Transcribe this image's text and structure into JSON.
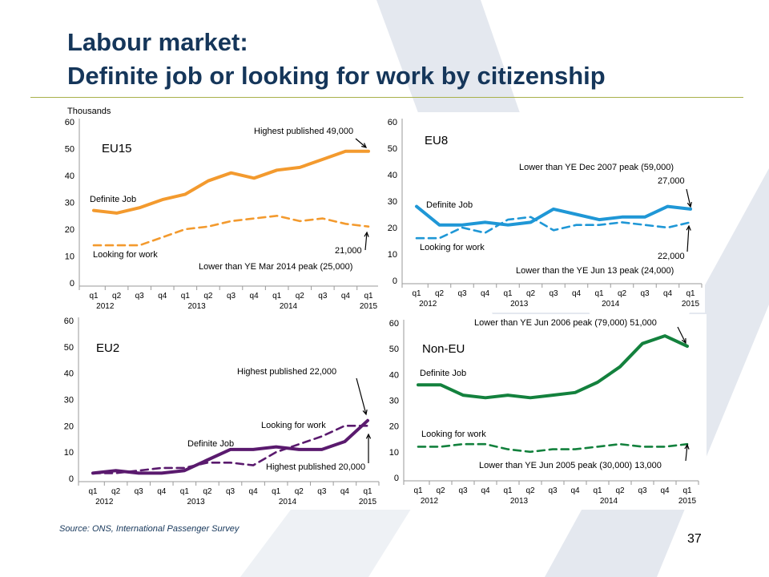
{
  "slide": {
    "title_line1": "Labour market:",
    "title_line2": "Definite job or looking for work by citizenship",
    "source": "Source: ONS, International Passenger Survey",
    "page_number": "37"
  },
  "colors": {
    "title": "#15365a",
    "rule": "#a9b04a",
    "eu15": "#f39a2e",
    "eu8": "#1f97d6",
    "eu2": "#5a1a6e",
    "noneu": "#13813d",
    "background_chevron": "#e4e8ef"
  },
  "chart_data": [
    {
      "name": "eu15",
      "type": "line",
      "title": "EU15",
      "ylabel": "Thousands",
      "ylim": [
        0,
        60
      ],
      "yticks": [
        "0",
        "10",
        "20",
        "30",
        "40",
        "50",
        "60"
      ],
      "categories": [
        "q1",
        "q2",
        "q3",
        "q4",
        "q1",
        "q2",
        "q3",
        "q4",
        "q1",
        "q2",
        "q3",
        "q4",
        "q1"
      ],
      "year_labels": [
        {
          "text": "2012",
          "index": 0.5
        },
        {
          "text": "2013",
          "index": 4.5
        },
        {
          "text": "2014",
          "index": 8.5
        },
        {
          "text": "2015",
          "index": 12
        }
      ],
      "grid": false,
      "series": [
        {
          "name": "Definite Job",
          "style": "solid",
          "values": [
            27,
            26,
            28,
            31,
            33,
            38,
            41,
            39,
            42,
            43,
            46,
            49,
            49
          ]
        },
        {
          "name": "Looking for work",
          "style": "dashed",
          "values": [
            14,
            14,
            14,
            17,
            20,
            21,
            23,
            24,
            25,
            23,
            24,
            22,
            21
          ]
        }
      ],
      "annotations": [
        {
          "text": "Highest published  49,000",
          "x": 12,
          "y": 49,
          "side": "above"
        },
        {
          "text": "21,000",
          "x": 12,
          "y": 21,
          "side": "below"
        },
        {
          "text": "Lower than YE Mar 2014 peak (25,000)",
          "x": 12,
          "y": 21,
          "side": "below"
        }
      ]
    },
    {
      "name": "eu8",
      "type": "line",
      "title": "EU8",
      "ylim": [
        0,
        60
      ],
      "yticks": [
        "0",
        "10",
        "20",
        "30",
        "40",
        "50",
        "60"
      ],
      "categories": [
        "q1",
        "q2",
        "q3",
        "q4",
        "q1",
        "q2",
        "q3",
        "q4",
        "q1",
        "q2",
        "q3",
        "q4",
        "q1"
      ],
      "year_labels": [
        {
          "text": "2012",
          "index": 0.5
        },
        {
          "text": "2013",
          "index": 4.5
        },
        {
          "text": "2014",
          "index": 8.5
        },
        {
          "text": "2015",
          "index": 12
        }
      ],
      "grid": false,
      "series": [
        {
          "name": "Definite Job",
          "style": "solid",
          "values": [
            28,
            21,
            21,
            22,
            21,
            22,
            27,
            25,
            23,
            24,
            24,
            28,
            27
          ]
        },
        {
          "name": "Looking for work",
          "style": "dashed",
          "values": [
            16,
            16,
            20,
            18,
            23,
            24,
            19,
            21,
            21,
            22,
            21,
            20,
            22
          ]
        }
      ],
      "annotations": [
        {
          "text": "Lower than YE Dec 2007 peak (59,000)",
          "x": 12,
          "y": 27,
          "side": "above"
        },
        {
          "text": "27,000",
          "x": 12,
          "y": 27,
          "side": "above"
        },
        {
          "text": "22,000",
          "x": 12,
          "y": 22,
          "side": "below"
        },
        {
          "text": "Lower than the YE Jun 13 peak (24,000)",
          "x": 12,
          "y": 22,
          "side": "below"
        }
      ]
    },
    {
      "name": "eu2",
      "type": "line",
      "title": "EU2",
      "ylim": [
        0,
        60
      ],
      "yticks": [
        "0",
        "10",
        "20",
        "30",
        "40",
        "50",
        "60"
      ],
      "categories": [
        "q1",
        "q2",
        "q3",
        "q4",
        "q1",
        "q2",
        "q3",
        "q4",
        "q1",
        "q2",
        "q3",
        "q4",
        "q1"
      ],
      "year_labels": [
        {
          "text": "2012",
          "index": 0.5
        },
        {
          "text": "2013",
          "index": 4.5
        },
        {
          "text": "2014",
          "index": 8.5
        },
        {
          "text": "2015",
          "index": 12
        }
      ],
      "grid": false,
      "series": [
        {
          "name": "Definite Job",
          "style": "solid",
          "values": [
            2,
            3,
            2,
            2,
            3,
            7,
            11,
            11,
            12,
            11,
            11,
            14,
            22
          ]
        },
        {
          "name": "Looking for work",
          "style": "dashed",
          "values": [
            2,
            2,
            3,
            4,
            4,
            6,
            6,
            5,
            10,
            13,
            16,
            20,
            20
          ]
        }
      ],
      "annotations": [
        {
          "text": "Highest published  22,000",
          "x": 12,
          "y": 22,
          "side": "above"
        },
        {
          "text": "Highest published  20,000",
          "x": 12,
          "y": 20,
          "side": "below"
        }
      ]
    },
    {
      "name": "noneu",
      "type": "line",
      "title": "Non-EU",
      "ylim": [
        0,
        60
      ],
      "yticks": [
        "0",
        "10",
        "20",
        "30",
        "40",
        "50",
        "60"
      ],
      "categories": [
        "q1",
        "q2",
        "q3",
        "q4",
        "q1",
        "q2",
        "q3",
        "q4",
        "q1",
        "q2",
        "q3",
        "q4",
        "q1"
      ],
      "year_labels": [
        {
          "text": "2012",
          "index": 0.5
        },
        {
          "text": "2013",
          "index": 4.5
        },
        {
          "text": "2014",
          "index": 8.5
        },
        {
          "text": "2015",
          "index": 12
        }
      ],
      "grid": false,
      "series": [
        {
          "name": "Definite Job",
          "style": "solid",
          "values": [
            36,
            36,
            32,
            31,
            32,
            31,
            32,
            33,
            37,
            43,
            52,
            55,
            51
          ]
        },
        {
          "name": "Looking for work",
          "style": "dashed",
          "values": [
            12,
            12,
            13,
            13,
            11,
            10,
            11,
            11,
            12,
            13,
            12,
            12,
            13
          ]
        }
      ],
      "annotations": [
        {
          "text": "Lower than YE Jun 2006 peak (79,000)  51,000",
          "x": 12,
          "y": 51,
          "side": "above"
        },
        {
          "text": "Lower than YE Jun 2005 peak (30,000)  13,000",
          "x": 12,
          "y": 13,
          "side": "below"
        }
      ]
    }
  ]
}
